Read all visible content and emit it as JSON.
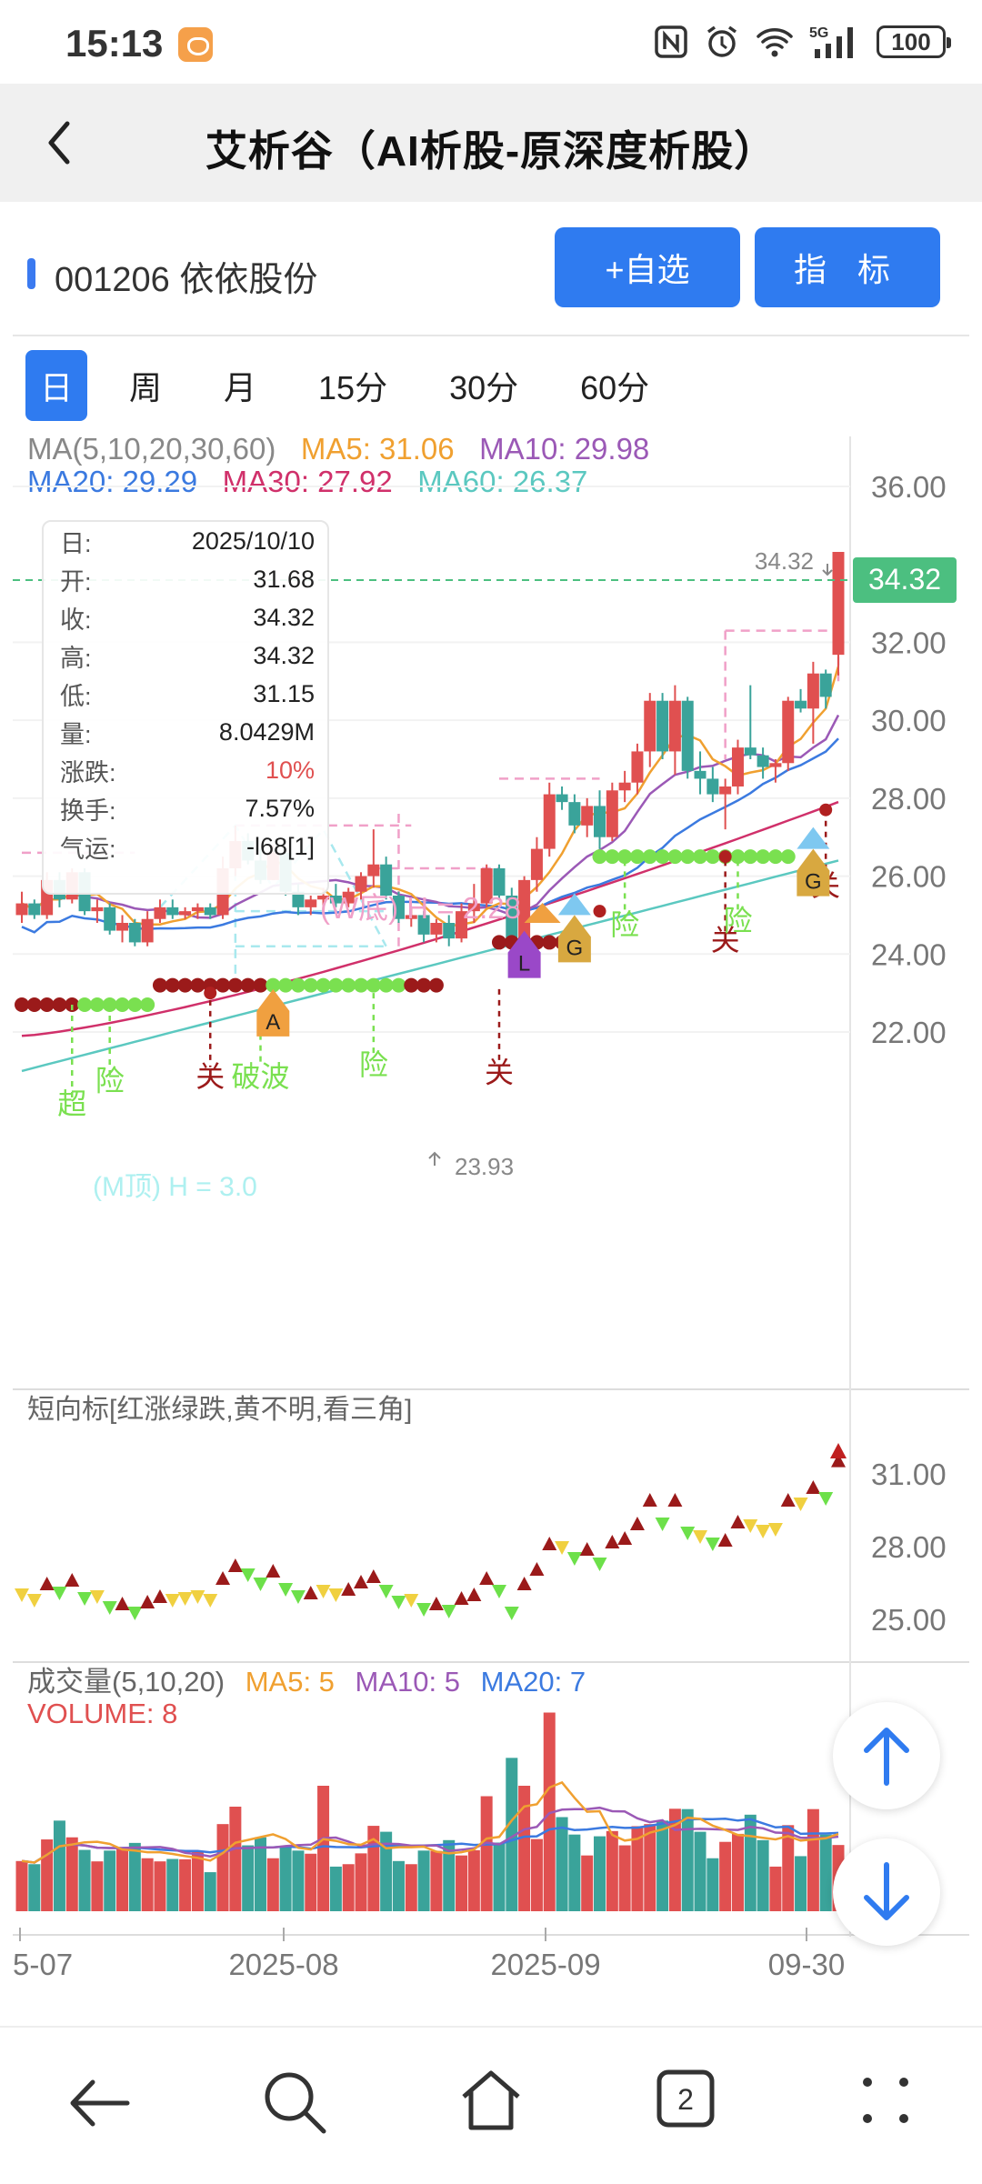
{
  "status_bar": {
    "time": "15:13",
    "network": "5G",
    "battery": "100"
  },
  "header": {
    "title": "艾析谷（AI析股-原深度析股）"
  },
  "stock": {
    "code_name": "001206 依依股份",
    "watch_button": "+自选",
    "indicator_button": "指 标"
  },
  "tabs": [
    {
      "label": "日",
      "active": true
    },
    {
      "label": "周"
    },
    {
      "label": "月"
    },
    {
      "label": "15分"
    },
    {
      "label": "30分"
    },
    {
      "label": "60分"
    }
  ],
  "ma_legend": {
    "title": "MA(5,10,20,30,60)",
    "ma5": "MA5: 31.06",
    "ma10": "MA10: 29.98",
    "ma20": "MA20: 29.29",
    "ma30": "MA30: 27.92",
    "ma60": "MA60: 26.37"
  },
  "colors": {
    "up": "#e05050",
    "down": "#3aa39a",
    "ma5": "#f0a030",
    "ma10": "#9b59b6",
    "ma20": "#3b7ae0",
    "ma30": "#d0306a",
    "ma60": "#5bc8c0",
    "accent": "#2f7bf0",
    "pink": "#f0a0c8",
    "green": "#7ae050",
    "darkred": "#9b1a1a",
    "current": "#4cbf80"
  },
  "info_box": [
    {
      "k": "日:",
      "v": "2025/10/10"
    },
    {
      "k": "开:",
      "v": "31.68"
    },
    {
      "k": "收:",
      "v": "34.32"
    },
    {
      "k": "高:",
      "v": "34.32"
    },
    {
      "k": "低:",
      "v": "31.15"
    },
    {
      "k": "量:",
      "v": "8.0429M"
    },
    {
      "k": "涨跌:",
      "v": "10%"
    },
    {
      "k": "换手:",
      "v": "7.57%"
    },
    {
      "k": "气运:",
      "v": "-l68[1]"
    }
  ],
  "price_axis": [
    "36.00",
    "32.00",
    "30.00",
    "28.00",
    "26.00",
    "24.00",
    "22.00"
  ],
  "current_price": "34.32",
  "high_label": "34.32",
  "low_label": "23.93",
  "pattern_labels": {
    "w_bottom": "(W底) H = 2.28",
    "m_top": "(M顶) H = 3.0"
  },
  "signal_text": {
    "chao": "超",
    "xian": "险",
    "guan": "关",
    "pobo": "破波"
  },
  "badges": [
    "A",
    "L",
    "G",
    "G"
  ],
  "short_indicator": {
    "title": "短向标[红涨绿跌,黄不明,看三角]",
    "axis": [
      "31.00",
      "28.00",
      "25.00"
    ]
  },
  "volume": {
    "title": "成交量(5,10,20)",
    "ma5": "MA5: 5",
    "ma10": "MA10: 5",
    "ma20": "MA20: 7",
    "volume": "VOLUME: 8"
  },
  "date_axis": [
    "5-07",
    "2025-08",
    "2025-09",
    "09-30"
  ],
  "chart_data": {
    "type": "candlestick",
    "ohlc": [
      [
        25.0,
        25.6,
        24.8,
        25.3
      ],
      [
        25.3,
        25.4,
        24.9,
        25.0
      ],
      [
        25.0,
        26.1,
        24.9,
        25.9
      ],
      [
        25.9,
        26.1,
        25.2,
        25.4
      ],
      [
        25.4,
        26.2,
        25.3,
        26.1
      ],
      [
        26.1,
        26.2,
        25.0,
        25.1
      ],
      [
        25.1,
        25.4,
        24.8,
        25.2
      ],
      [
        25.2,
        25.3,
        24.5,
        24.6
      ],
      [
        24.6,
        25.0,
        24.3,
        24.8
      ],
      [
        24.8,
        24.9,
        24.2,
        24.3
      ],
      [
        24.3,
        25.1,
        24.2,
        24.9
      ],
      [
        24.9,
        25.4,
        24.8,
        25.2
      ],
      [
        25.2,
        25.4,
        24.9,
        25.0
      ],
      [
        25.0,
        25.2,
        24.9,
        25.1
      ],
      [
        25.1,
        25.3,
        24.9,
        25.2
      ],
      [
        25.2,
        25.3,
        24.9,
        25.0
      ],
      [
        25.0,
        26.5,
        24.9,
        26.2
      ],
      [
        26.2,
        27.3,
        26.0,
        26.9
      ],
      [
        26.9,
        27.1,
        26.3,
        26.4
      ],
      [
        26.4,
        26.7,
        25.8,
        25.9
      ],
      [
        25.9,
        26.8,
        25.9,
        26.6
      ],
      [
        26.6,
        26.6,
        25.5,
        25.6
      ],
      [
        25.6,
        25.8,
        25.0,
        25.2
      ],
      [
        25.2,
        25.5,
        25.0,
        25.4
      ],
      [
        25.4,
        25.7,
        25.1,
        25.5
      ],
      [
        25.5,
        25.8,
        25.2,
        25.3
      ],
      [
        25.3,
        25.7,
        25.2,
        25.6
      ],
      [
        25.6,
        26.1,
        25.4,
        26.0
      ],
      [
        26.0,
        27.2,
        25.7,
        26.3
      ],
      [
        26.3,
        26.5,
        25.4,
        25.5
      ],
      [
        25.5,
        25.6,
        24.8,
        24.9
      ],
      [
        24.9,
        25.2,
        24.7,
        25.0
      ],
      [
        25.0,
        25.1,
        24.3,
        24.5
      ],
      [
        24.5,
        24.9,
        24.3,
        24.8
      ],
      [
        24.8,
        25.0,
        24.2,
        24.4
      ],
      [
        24.4,
        25.3,
        24.3,
        25.1
      ],
      [
        25.1,
        25.8,
        24.8,
        25.3
      ],
      [
        25.3,
        26.3,
        25.2,
        26.2
      ],
      [
        26.2,
        26.3,
        25.4,
        25.5
      ],
      [
        25.5,
        25.7,
        24.0,
        24.3
      ],
      [
        24.3,
        26.0,
        23.93,
        25.9
      ],
      [
        25.9,
        27.0,
        25.6,
        26.7
      ],
      [
        26.7,
        28.4,
        26.5,
        28.1
      ],
      [
        28.1,
        28.3,
        27.7,
        27.9
      ],
      [
        27.9,
        28.1,
        27.1,
        27.3
      ],
      [
        27.3,
        28.0,
        27.0,
        27.8
      ],
      [
        27.8,
        28.2,
        26.7,
        27.0
      ],
      [
        27.0,
        28.4,
        26.9,
        28.2
      ],
      [
        28.2,
        28.7,
        27.9,
        28.4
      ],
      [
        28.4,
        29.4,
        28.1,
        29.2
      ],
      [
        29.2,
        30.7,
        28.8,
        30.5
      ],
      [
        30.5,
        30.7,
        29.0,
        29.2
      ],
      [
        29.2,
        30.9,
        28.6,
        30.5
      ],
      [
        30.5,
        30.6,
        28.5,
        28.7
      ],
      [
        28.7,
        29.2,
        28.1,
        28.5
      ],
      [
        28.5,
        28.8,
        27.9,
        28.1
      ],
      [
        28.1,
        28.5,
        27.2,
        28.3
      ],
      [
        28.3,
        29.5,
        28.1,
        29.3
      ],
      [
        29.3,
        30.9,
        29.0,
        29.1
      ],
      [
        29.1,
        29.3,
        28.5,
        28.8
      ],
      [
        28.8,
        29.0,
        28.4,
        28.9
      ],
      [
        28.9,
        30.6,
        28.7,
        30.5
      ],
      [
        30.5,
        30.8,
        30.2,
        30.3
      ],
      [
        30.3,
        31.5,
        29.4,
        31.2
      ],
      [
        31.2,
        31.3,
        30.3,
        30.6
      ],
      [
        31.68,
        34.32,
        31.15,
        34.32
      ]
    ]
  }
}
